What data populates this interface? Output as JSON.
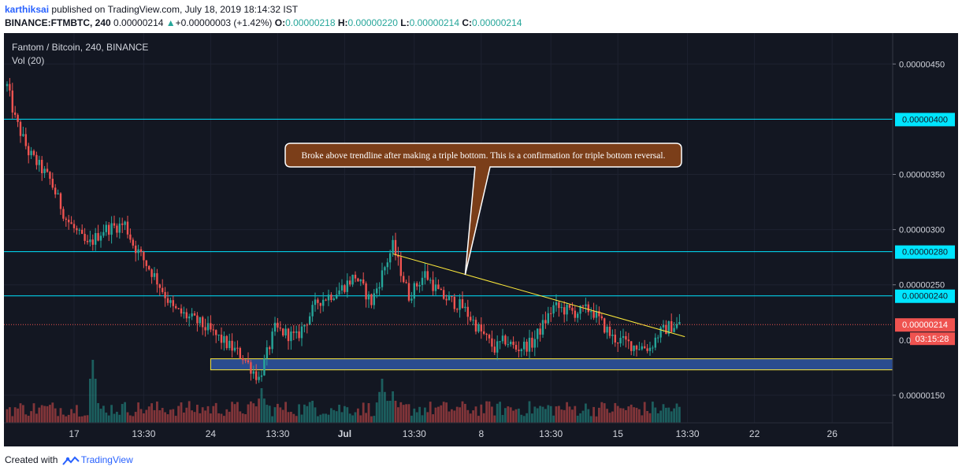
{
  "header": {
    "author": "karthiksai",
    "published_text": "published on TradingView.com, July 18, 2019 18:14:32 IST",
    "symbol": "BINANCE:FTMBTC, 240",
    "last": "0.00000214",
    "change": "+0.00000003 (+1.42%)",
    "o_label": "O:",
    "o_value": "0.00000218",
    "h_label": "H:",
    "h_value": "0.00000220",
    "l_label": "L:",
    "l_value": "0.00000214",
    "c_label": "C:",
    "c_value": "0.00000214"
  },
  "legend": {
    "title": "Fantom / Bitcoin, 240, BINANCE",
    "volume": "Vol (20)"
  },
  "callout": {
    "text": "Broke above trendline after making a triple bottom. This is a confirmation for triple bottom reversal."
  },
  "footer": {
    "created_with": "Created with",
    "brand": "TradingView"
  },
  "colors": {
    "background": "#131722",
    "up": "#26a69a",
    "down": "#ef5350",
    "horizontal_lines": "#00e5ff",
    "trendline": "#ffeb3b",
    "support_zone": "#2a4c8f",
    "callout_fill": "#7b3e19"
  },
  "chart_data": {
    "type": "candlestick",
    "symbol": "FTMBTC",
    "exchange": "BINANCE",
    "interval": "240",
    "price_axis": {
      "ticks": [
        "0.00000450",
        "0.00000350",
        "0.00000300",
        "0.00000250",
        "0.00000150"
      ],
      "partial_tick": "0.0",
      "ylim": [
        1.25e-06,
        4.78e-06
      ]
    },
    "time_axis": {
      "ticks": [
        "17",
        "13:30",
        "24",
        "13:30",
        "Jul",
        "13:30",
        "8",
        "13:30",
        "15",
        "13:30",
        "22",
        "26"
      ],
      "bold_ticks": [
        "Jul"
      ]
    },
    "horizontal_lines": [
      {
        "price": 4e-06,
        "label": "0.00000400"
      },
      {
        "price": 2.8e-06,
        "label": "0.00000280"
      },
      {
        "price": 2.4e-06,
        "label": "0.00000240"
      }
    ],
    "last_price": {
      "price": 2.14e-06,
      "label": "0.00000214",
      "countdown": "03:15:28"
    },
    "support_zone": {
      "from": 1.73e-06,
      "to": 1.83e-06
    },
    "trendline": {
      "from": {
        "bar": 144,
        "price": 2.78e-06
      },
      "to": {
        "bar": 253,
        "price": 2.03e-06
      }
    },
    "callout_anchor": {
      "bar": 171,
      "price": 2.59e-06
    },
    "keypoints": [
      [
        0,
        4.3e-06
      ],
      [
        3,
        4e-06
      ],
      [
        8,
        3.7e-06
      ],
      [
        16,
        3.45e-06
      ],
      [
        22,
        3.1e-06
      ],
      [
        30,
        2.85e-06
      ],
      [
        36,
        3e-06
      ],
      [
        44,
        3.05e-06
      ],
      [
        47,
        2.87e-06
      ],
      [
        55,
        2.58e-06
      ],
      [
        62,
        2.28e-06
      ],
      [
        72,
        2.15e-06
      ],
      [
        80,
        2e-06
      ],
      [
        88,
        1.85e-06
      ],
      [
        94,
        1.65e-06
      ],
      [
        100,
        2.1e-06
      ],
      [
        108,
        2.02e-06
      ],
      [
        116,
        2.35e-06
      ],
      [
        124,
        2.45e-06
      ],
      [
        130,
        2.58e-06
      ],
      [
        136,
        2.34e-06
      ],
      [
        140,
        2.6e-06
      ],
      [
        144,
        2.85e-06
      ],
      [
        150,
        2.4e-06
      ],
      [
        156,
        2.6e-06
      ],
      [
        162,
        2.4e-06
      ],
      [
        170,
        2.3e-06
      ],
      [
        176,
        2.1e-06
      ],
      [
        182,
        1.92e-06
      ],
      [
        186,
        2e-06
      ],
      [
        190,
        1.92e-06
      ],
      [
        196,
        1.97e-06
      ],
      [
        204,
        2.3e-06
      ],
      [
        212,
        2.25e-06
      ],
      [
        218,
        2.28e-06
      ],
      [
        226,
        2.02e-06
      ],
      [
        234,
        1.95e-06
      ],
      [
        240,
        1.93e-06
      ],
      [
        243,
        2.05e-06
      ],
      [
        247,
        2.12e-06
      ],
      [
        251,
        2.14e-06
      ]
    ],
    "volume_peaks": [
      {
        "bar": 32,
        "volume": 1.0
      },
      {
        "bar": 95,
        "volume": 0.55
      },
      {
        "bar": 140,
        "volume": 0.7
      },
      {
        "bar": 144,
        "volume": 0.5
      },
      {
        "bar": 114,
        "volume": 0.35
      }
    ]
  }
}
